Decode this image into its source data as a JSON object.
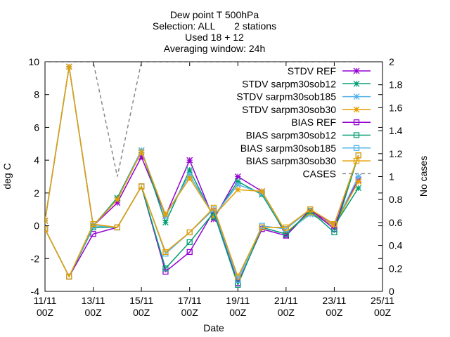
{
  "chart_data": {
    "type": "line",
    "title": [
      "Dew point T 500hPa",
      "Selection: ALL       2 stations",
      "Used 18 + 12",
      "Averaging window: 24h"
    ],
    "xlabel": "Date",
    "ylabel": "deg C",
    "y2label": "No cases",
    "xlim": [
      0,
      14
    ],
    "ylim": [
      -4,
      10
    ],
    "y2lim": [
      0,
      2
    ],
    "x_ticks": [
      {
        "x": 0,
        "line1": "11/11",
        "line2": "00Z"
      },
      {
        "x": 2,
        "line1": "13/11",
        "line2": "00Z"
      },
      {
        "x": 4,
        "line1": "15/11",
        "line2": "00Z"
      },
      {
        "x": 6,
        "line1": "17/11",
        "line2": "00Z"
      },
      {
        "x": 8,
        "line1": "19/11",
        "line2": "00Z"
      },
      {
        "x": 10,
        "line1": "21/11",
        "line2": "00Z"
      },
      {
        "x": 12,
        "line1": "23/11",
        "line2": "00Z"
      },
      {
        "x": 14,
        "line1": "25/11",
        "line2": "00Z"
      }
    ],
    "y_ticks": [
      "-4",
      "-2",
      "0",
      "2",
      "4",
      "6",
      "8",
      "10"
    ],
    "y2_ticks": [
      "0",
      "0.2",
      "0.4",
      "0.6",
      "0.8",
      "1",
      "1.2",
      "1.4",
      "1.6",
      "1.8",
      "2"
    ],
    "grid": false,
    "legend_position": "top-right",
    "x": [
      0,
      1,
      2,
      3,
      4,
      5,
      6,
      7,
      8,
      9,
      10,
      11,
      12,
      13
    ],
    "series": [
      {
        "name": "STDV REF",
        "color": "#9400d3",
        "marker": "x-star",
        "values": [
          0.3,
          9.7,
          0.0,
          1.4,
          4.2,
          0.6,
          4.0,
          0.4,
          3.0,
          2.1,
          -0.6,
          0.9,
          0.1,
          2.8
        ]
      },
      {
        "name": "STDV sar_pm30_sob12",
        "color": "#009e73",
        "marker": "x-star",
        "values": [
          0.3,
          9.7,
          0.0,
          1.7,
          4.6,
          0.2,
          3.4,
          0.5,
          2.7,
          1.9,
          -0.5,
          0.8,
          0.0,
          2.3
        ]
      },
      {
        "name": "STDV sar_pm30_sob185",
        "color": "#56b4e9",
        "marker": "x-star",
        "values": [
          0.3,
          9.7,
          0.0,
          1.6,
          4.6,
          0.6,
          3.1,
          0.6,
          2.5,
          2.0,
          -0.4,
          0.7,
          0.0,
          3.0
        ]
      },
      {
        "name": "STDV sar_pm30_sob30",
        "color": "#e69f00",
        "marker": "x-star",
        "values": [
          0.3,
          9.7,
          0.0,
          1.6,
          4.5,
          0.7,
          2.9,
          0.6,
          2.2,
          2.1,
          -0.4,
          0.8,
          0.0,
          2.7
        ]
      },
      {
        "name": "BIAS REF",
        "color": "#9400d3",
        "marker": "square",
        "values": [
          -0.2,
          -3.1,
          -0.5,
          -0.1,
          2.4,
          -2.8,
          -1.6,
          0.9,
          -3.5,
          -0.2,
          -0.6,
          1.0,
          -0.2,
          4.3
        ]
      },
      {
        "name": "BIAS sar_pm30_sob12",
        "color": "#009e73",
        "marker": "square",
        "values": [
          -0.2,
          -3.1,
          -0.1,
          -0.1,
          2.4,
          -2.6,
          -1.0,
          0.8,
          -3.6,
          -0.1,
          -0.5,
          0.9,
          -0.4,
          4.3
        ]
      },
      {
        "name": "BIAS sar_pm30_sob185",
        "color": "#56b4e9",
        "marker": "square",
        "values": [
          -0.2,
          -3.1,
          0.0,
          -0.1,
          2.4,
          -1.7,
          -0.4,
          1.0,
          -3.3,
          0.0,
          -0.2,
          1.0,
          0.1,
          4.3
        ]
      },
      {
        "name": "BIAS sar_pm30_sob30",
        "color": "#e69f00",
        "marker": "square",
        "values": [
          -0.2,
          -3.1,
          0.1,
          -0.1,
          2.4,
          -1.6,
          -0.4,
          1.1,
          -3.1,
          -0.1,
          -0.1,
          1.0,
          0.1,
          4.3
        ]
      }
    ],
    "cases": {
      "name": "CASES",
      "color": "#888888",
      "dash": "dashed",
      "axis": "y2",
      "x": [
        0,
        1,
        2,
        3,
        4,
        5,
        6,
        7,
        8,
        9,
        10,
        11,
        12,
        13
      ],
      "values": [
        2,
        2,
        2,
        1,
        2,
        2,
        2,
        2,
        2,
        2,
        2,
        2,
        2,
        2
      ]
    }
  }
}
